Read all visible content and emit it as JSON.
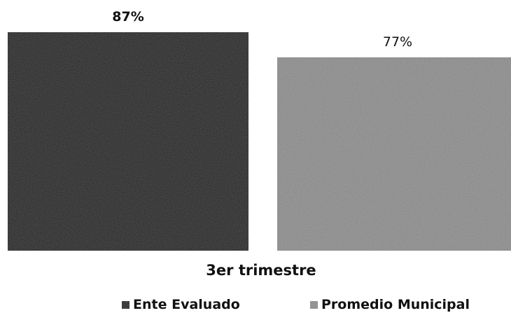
{
  "chart_data": {
    "type": "bar",
    "categories": [
      "3er trimestre"
    ],
    "series": [
      {
        "name": "Ente Evaluado",
        "values": [
          87
        ],
        "label": "87%",
        "color": "#141414"
      },
      {
        "name": "Promedio Municipal",
        "values": [
          77
        ],
        "label": "77%",
        "color": "#a9a9a9"
      }
    ],
    "ylim": [
      0,
      87
    ],
    "grid": false,
    "legend": "bottom"
  }
}
